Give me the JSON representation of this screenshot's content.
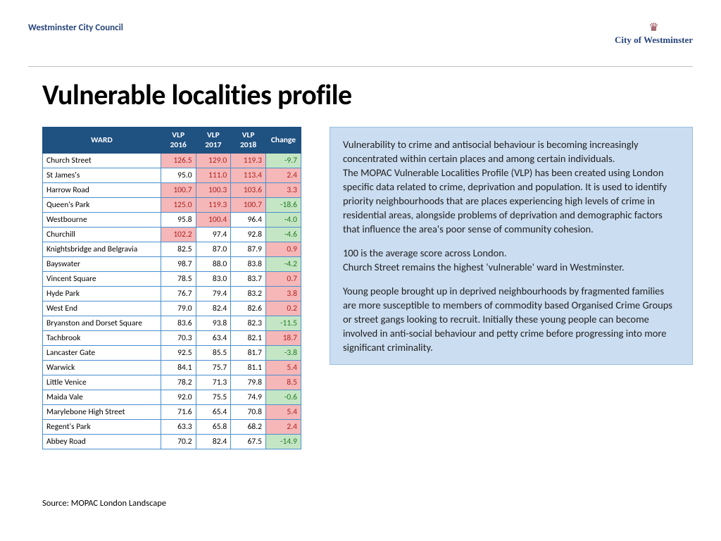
{
  "header": {
    "council": "Westminster City Council",
    "logo_line": "City of Westminster"
  },
  "title": "Vulnerable localities profile",
  "table": {
    "columns": [
      "WARD",
      "VLP 2016",
      "VLP 2017",
      "VLP 2018",
      "Change"
    ],
    "highlight_threshold": 100.0,
    "colors": {
      "header_bg": "#1f5181",
      "header_fg": "#ffffff",
      "border": "#4a8fcf",
      "cell_bg": "#ffffff",
      "hl_bg": "#f5b7b7",
      "hl_fg": "#b02020",
      "neg_bg": "#c5e6c5",
      "neg_fg": "#1e7a1e"
    },
    "rows": [
      {
        "ward": "Church Street",
        "v16": 126.5,
        "v17": 129.0,
        "v18": 119.3,
        "chg": -9.7
      },
      {
        "ward": "St James's",
        "v16": 95.0,
        "v17": 111.0,
        "v18": 113.4,
        "chg": 2.4
      },
      {
        "ward": "Harrow Road",
        "v16": 100.7,
        "v17": 100.3,
        "v18": 103.6,
        "chg": 3.3
      },
      {
        "ward": "Queen's Park",
        "v16": 125.0,
        "v17": 119.3,
        "v18": 100.7,
        "chg": -18.6
      },
      {
        "ward": "Westbourne",
        "v16": 95.8,
        "v17": 100.4,
        "v18": 96.4,
        "chg": -4.0
      },
      {
        "ward": "Churchill",
        "v16": 102.2,
        "v17": 97.4,
        "v18": 92.8,
        "chg": -4.6
      },
      {
        "ward": "Knightsbridge and Belgravia",
        "v16": 82.5,
        "v17": 87.0,
        "v18": 87.9,
        "chg": 0.9
      },
      {
        "ward": "Bayswater",
        "v16": 98.7,
        "v17": 88.0,
        "v18": 83.8,
        "chg": -4.2
      },
      {
        "ward": "Vincent Square",
        "v16": 78.5,
        "v17": 83.0,
        "v18": 83.7,
        "chg": 0.7
      },
      {
        "ward": "Hyde Park",
        "v16": 76.7,
        "v17": 79.4,
        "v18": 83.2,
        "chg": 3.8
      },
      {
        "ward": "West End",
        "v16": 79.0,
        "v17": 82.4,
        "v18": 82.6,
        "chg": 0.2
      },
      {
        "ward": "Bryanston and Dorset Square",
        "v16": 83.6,
        "v17": 93.8,
        "v18": 82.3,
        "chg": -11.5
      },
      {
        "ward": "Tachbrook",
        "v16": 70.3,
        "v17": 63.4,
        "v18": 82.1,
        "chg": 18.7
      },
      {
        "ward": "Lancaster Gate",
        "v16": 92.5,
        "v17": 85.5,
        "v18": 81.7,
        "chg": -3.8
      },
      {
        "ward": "Warwick",
        "v16": 84.1,
        "v17": 75.7,
        "v18": 81.1,
        "chg": 5.4
      },
      {
        "ward": "Little Venice",
        "v16": 78.2,
        "v17": 71.3,
        "v18": 79.8,
        "chg": 8.5
      },
      {
        "ward": "Maida Vale",
        "v16": 92.0,
        "v17": 75.5,
        "v18": 74.9,
        "chg": -0.6
      },
      {
        "ward": "Marylebone High Street",
        "v16": 71.6,
        "v17": 65.4,
        "v18": 70.8,
        "chg": 5.4
      },
      {
        "ward": "Regent's Park",
        "v16": 63.3,
        "v17": 65.8,
        "v18": 68.2,
        "chg": 2.4
      },
      {
        "ward": "Abbey Road",
        "v16": 70.2,
        "v17": 82.4,
        "v18": 67.5,
        "chg": -14.9
      }
    ]
  },
  "info": {
    "bg": "#cbddf0",
    "border": "#9abde0",
    "paragraphs": [
      "Vulnerability to crime and antisocial behaviour is becoming increasingly concentrated within certain places and among certain individuals.\nThe MOPAC Vulnerable Localities Profile (VLP) has been created using London specific data related to crime, deprivation and population.  It is used to identify priority neighbourhoods that are places experiencing high levels of crime in residential areas, alongside problems of deprivation and demographic factors that influence the area's poor sense of community cohesion.",
      "100 is the average score across London.\nChurch Street remains the highest 'vulnerable' ward in Westminster.",
      "Young people brought up in deprived neighbourhoods by fragmented families are more susceptible to members of commodity based Organised Crime Groups or street gangs looking to recruit.  Initially these young people can become involved in anti-social behaviour and petty crime before progressing into more significant criminality."
    ]
  },
  "source": "Source: MOPAC London Landscape"
}
